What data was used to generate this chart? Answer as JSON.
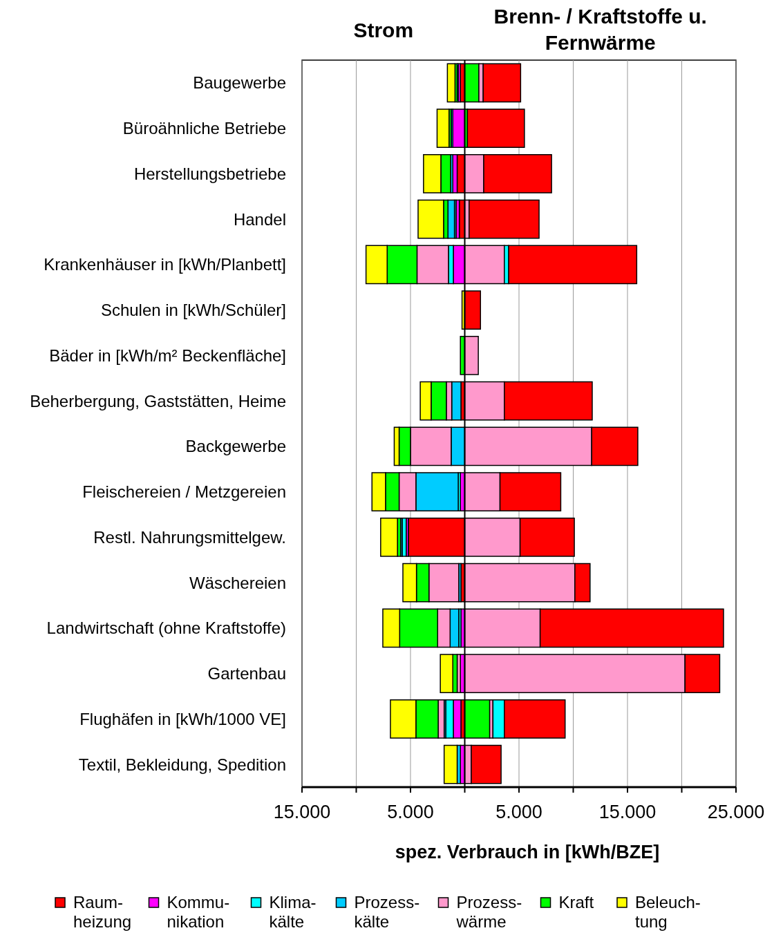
{
  "chart_data": {
    "type": "bar",
    "orientation": "horizontal",
    "stacked": true,
    "annotations": [
      "Strom",
      "Brenn- / Kraftstoffe u. Fernwärme"
    ],
    "xlabel": "spez. Verbrauch in [kWh/BZE]",
    "categories": [
      "Baugewerbe",
      "Büroähnliche Betriebe",
      "Herstellungsbetriebe",
      "Handel",
      "Krankenhäuser in [kWh/Planbett]",
      "Schulen in [kWh/Schüler]",
      "Bäder in [kWh/m² Beckenfläche]",
      "Beherbergung, Gaststätten, Heime",
      "Backgewerbe",
      "Fleischereien / Metzgereien",
      "Restl. Nahrungsmittelgew.",
      "Wäschereien",
      "Landwirtschaft (ohne Kraftstoffe)",
      "Gartenbau",
      "Flughäfen in [kWh/1000 VE]",
      "Textil, Bekleidung, Spedition"
    ],
    "xlim": [
      -15000,
      25000
    ],
    "xticks": [
      {
        "value": -15000,
        "label": "15.000"
      },
      {
        "value": -10000,
        "label": null
      },
      {
        "value": -5000,
        "label": "5.000"
      },
      {
        "value": 0,
        "label": null
      },
      {
        "value": 5000,
        "label": "5.000"
      },
      {
        "value": 10000,
        "label": null
      },
      {
        "value": 15000,
        "label": "15.000"
      },
      {
        "value": 20000,
        "label": null
      },
      {
        "value": 25000,
        "label": "25.000"
      }
    ],
    "grid": "x",
    "legend": "bottom",
    "series": [
      {
        "name": "Raum- heizung",
        "color": "#ff0000",
        "values": [
          -400,
          null,
          -700,
          -500,
          null,
          null,
          null,
          -350,
          null,
          null,
          -5200,
          -350,
          null,
          null,
          -350,
          null
        ]
      },
      {
        "name": "Kommu- nikation",
        "color": "#ff00ff",
        "values": [
          -200,
          -1100,
          -400,
          -300,
          -1050,
          null,
          null,
          null,
          null,
          -400,
          -200,
          null,
          -350,
          -400,
          -700,
          -400
        ]
      },
      {
        "name": "Klima- kälte",
        "color": "#00ffff",
        "values": [
          null,
          null,
          null,
          -150,
          -450,
          null,
          null,
          null,
          null,
          -200,
          -350,
          null,
          -200,
          null,
          -700,
          null
        ]
      },
      {
        "name": "Prozess- kälte",
        "color": "#00ccff",
        "values": [
          -100,
          -150,
          -200,
          -600,
          null,
          null,
          null,
          -850,
          -1250,
          -3900,
          -150,
          -200,
          -800,
          null,
          -150,
          -300
        ]
      },
      {
        "name": "Prozess- wärme",
        "color": "#ff99cc",
        "values": [
          null,
          null,
          null,
          null,
          -2900,
          null,
          null,
          -500,
          -3750,
          -1550,
          null,
          -2750,
          -1150,
          -300,
          -550,
          null
        ]
      },
      {
        "name": "Kraft",
        "color": "#00ff00",
        "values": [
          -200,
          -200,
          -900,
          -400,
          -2750,
          null,
          -400,
          -1400,
          -1050,
          -1250,
          -300,
          -1150,
          -3500,
          -400,
          -2050,
          null
        ]
      },
      {
        "name": "Beleuch- tung",
        "color": "#ffff00",
        "values": [
          -700,
          -1100,
          -1600,
          -2350,
          -1950,
          -250,
          null,
          -1000,
          -450,
          -1250,
          -1550,
          -1250,
          -1550,
          -1150,
          -2350,
          -1200
        ]
      },
      {
        "color": "#00ff00",
        "values": [
          1300,
          250,
          null,
          null,
          null,
          null,
          null,
          null,
          null,
          null,
          null,
          null,
          null,
          null,
          2300,
          null
        ]
      },
      {
        "color": "#ff99cc",
        "values": [
          400,
          null,
          1750,
          400,
          3650,
          null,
          1250,
          3650,
          11700,
          3250,
          5100,
          10150,
          6950,
          20300,
          300,
          600
        ]
      },
      {
        "color": "#00ffff",
        "values": [
          null,
          null,
          null,
          null,
          400,
          null,
          null,
          null,
          null,
          null,
          null,
          null,
          null,
          null,
          1050,
          null
        ]
      },
      {
        "color": "#ff0000",
        "values": [
          3450,
          5250,
          6250,
          6450,
          11800,
          1450,
          null,
          8100,
          4250,
          5600,
          5000,
          1400,
          16900,
          3200,
          5600,
          2750
        ]
      }
    ]
  }
}
